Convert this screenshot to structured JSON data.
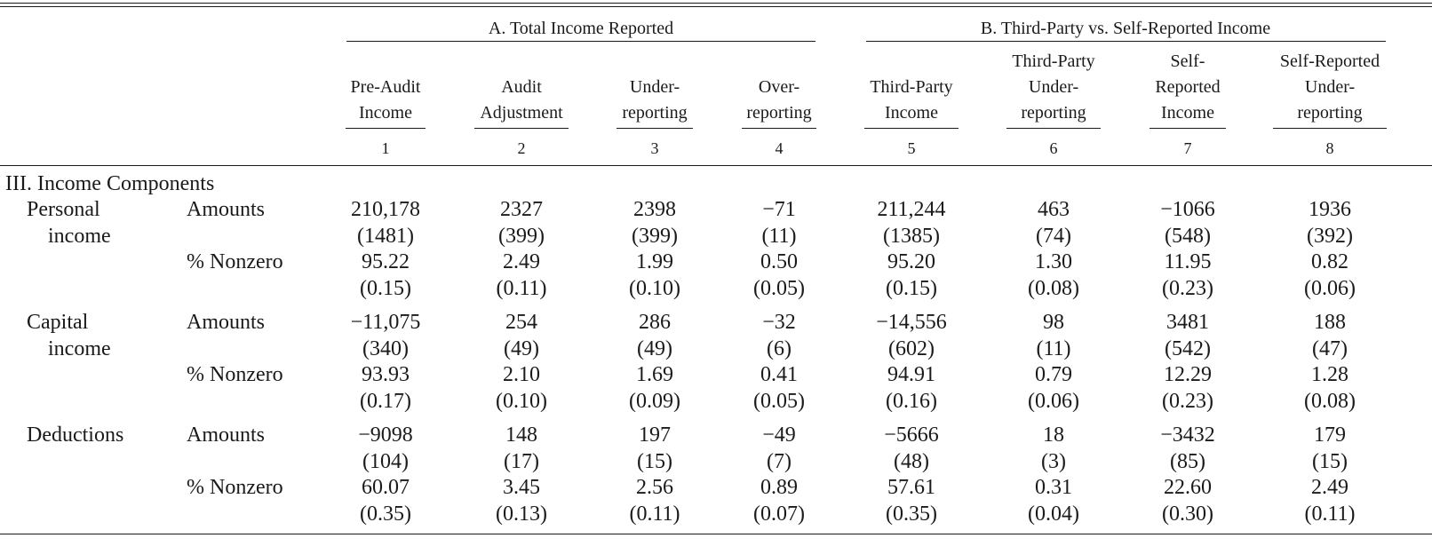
{
  "table": {
    "groups": [
      {
        "label": "A. Total Income Reported"
      },
      {
        "label": "B. Third-Party vs. Self-Reported Income"
      }
    ],
    "columns": [
      {
        "lines": [
          "Pre-Audit",
          "Income"
        ],
        "number": "1"
      },
      {
        "lines": [
          "Audit",
          "Adjustment"
        ],
        "number": "2"
      },
      {
        "lines": [
          "Under-",
          "reporting"
        ],
        "number": "3"
      },
      {
        "lines": [
          "Over-",
          "reporting"
        ],
        "number": "4"
      },
      {
        "lines": [
          "Third-Party",
          "Income"
        ],
        "number": "5"
      },
      {
        "lines": [
          "Third-Party",
          "Under-",
          "reporting"
        ],
        "number": "6"
      },
      {
        "lines": [
          "Self-",
          "Reported",
          "Income"
        ],
        "number": "7"
      },
      {
        "lines": [
          "Self-Reported",
          "Under-",
          "reporting"
        ],
        "number": "8"
      }
    ],
    "section_title": "III. Income Components",
    "blocks": [
      {
        "label_lines": [
          "Personal",
          "income"
        ],
        "rows": [
          {
            "label": "Amounts",
            "values": [
              "210,178",
              "2327",
              "2398",
              "−71",
              "211,244",
              "463",
              "−1066",
              "1936"
            ]
          },
          {
            "label": "",
            "values": [
              "(1481)",
              "(399)",
              "(399)",
              "(11)",
              "(1385)",
              "(74)",
              "(548)",
              "(392)"
            ]
          },
          {
            "label": "% Nonzero",
            "values": [
              "95.22",
              "2.49",
              "1.99",
              "0.50",
              "95.20",
              "1.30",
              "11.95",
              "0.82"
            ]
          },
          {
            "label": "",
            "values": [
              "(0.15)",
              "(0.11)",
              "(0.10)",
              "(0.05)",
              "(0.15)",
              "(0.08)",
              "(0.23)",
              "(0.06)"
            ]
          }
        ]
      },
      {
        "label_lines": [
          "Capital",
          "income"
        ],
        "rows": [
          {
            "label": "Amounts",
            "values": [
              "−11,075",
              "254",
              "286",
              "−32",
              "−14,556",
              "98",
              "3481",
              "188"
            ]
          },
          {
            "label": "",
            "values": [
              "(340)",
              "(49)",
              "(49)",
              "(6)",
              "(602)",
              "(11)",
              "(542)",
              "(47)"
            ]
          },
          {
            "label": "% Nonzero",
            "values": [
              "93.93",
              "2.10",
              "1.69",
              "0.41",
              "94.91",
              "0.79",
              "12.29",
              "1.28"
            ]
          },
          {
            "label": "",
            "values": [
              "(0.17)",
              "(0.10)",
              "(0.09)",
              "(0.05)",
              "(0.16)",
              "(0.06)",
              "(0.23)",
              "(0.08)"
            ]
          }
        ]
      },
      {
        "label_lines": [
          "Deductions"
        ],
        "rows": [
          {
            "label": "Amounts",
            "values": [
              "−9098",
              "148",
              "197",
              "−49",
              "−5666",
              "18",
              "−3432",
              "179"
            ]
          },
          {
            "label": "",
            "values": [
              "(104)",
              "(17)",
              "(15)",
              "(7)",
              "(48)",
              "(3)",
              "(85)",
              "(15)"
            ]
          },
          {
            "label": "% Nonzero",
            "values": [
              "60.07",
              "3.45",
              "2.56",
              "0.89",
              "57.61",
              "0.31",
              "22.60",
              "2.49"
            ]
          },
          {
            "label": "",
            "values": [
              "(0.35)",
              "(0.13)",
              "(0.11)",
              "(0.07)",
              "(0.35)",
              "(0.04)",
              "(0.30)",
              "(0.11)"
            ]
          }
        ]
      }
    ]
  }
}
